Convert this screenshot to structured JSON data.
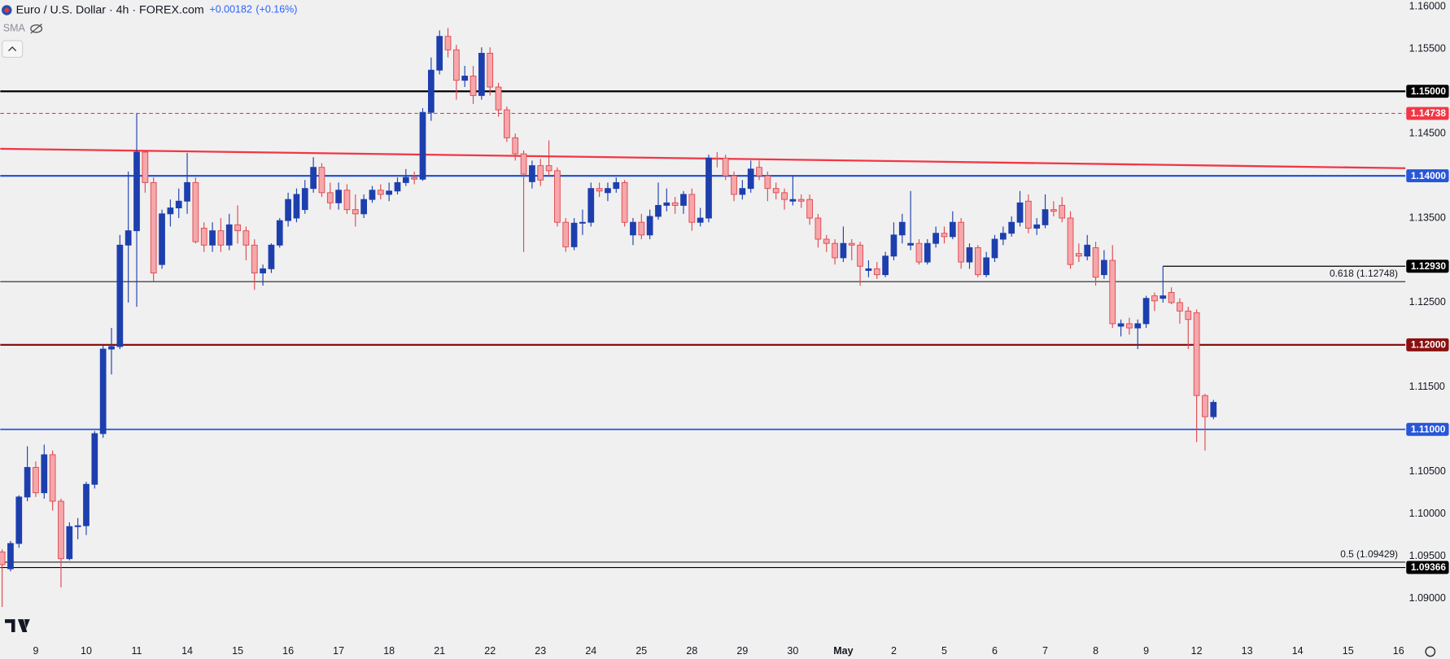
{
  "header": {
    "symbol": "Euro / U.S. Dollar · 4h · FOREX.com",
    "change": "+0.00182",
    "change_pct": "(+0.16%)",
    "indicator": "SMA"
  },
  "chart_data": {
    "type": "candlestick",
    "categories": [
      null,
      null,
      null,
      null,
      "9",
      null,
      null,
      null,
      null,
      null,
      "10",
      null,
      null,
      null,
      null,
      null,
      "11",
      null,
      null,
      null,
      null,
      null,
      "14",
      null,
      null,
      null,
      null,
      null,
      "15",
      null,
      null,
      null,
      null,
      null,
      "16",
      null,
      null,
      null,
      null,
      null,
      "17",
      null,
      null,
      null,
      null,
      null,
      "18",
      null,
      null,
      null,
      null,
      null,
      "21",
      null,
      null,
      null,
      null,
      null,
      "22",
      null,
      null,
      null,
      null,
      null,
      "23",
      null,
      null,
      null,
      null,
      null,
      "24",
      null,
      null,
      null,
      null,
      null,
      "25",
      null,
      null,
      null,
      null,
      null,
      "28",
      null,
      null,
      null,
      null,
      null,
      "29",
      null,
      null,
      null,
      null,
      null,
      "30",
      null,
      null,
      null,
      null,
      null,
      "May",
      null,
      null,
      null,
      null,
      null,
      "2",
      null,
      null,
      null,
      null,
      null,
      "5",
      null,
      null,
      null,
      null,
      null,
      "6",
      null,
      null,
      null,
      null,
      null,
      "7",
      null,
      null,
      null,
      null,
      null,
      "8",
      null,
      null,
      null,
      null,
      null,
      "9",
      null,
      null,
      null,
      null,
      null,
      "12",
      null,
      null,
      null,
      null,
      null,
      "13",
      null,
      null,
      null,
      null,
      null,
      "14",
      null,
      null,
      null,
      null,
      null,
      "15",
      null,
      null,
      null,
      null,
      null,
      "16"
    ],
    "ohlc": [
      [
        1.0955,
        1.0958,
        1.089,
        1.094
      ],
      [
        1.0935,
        1.0968,
        1.0932,
        1.0965
      ],
      [
        1.0965,
        1.1022,
        1.096,
        1.102
      ],
      [
        1.102,
        1.108,
        1.1015,
        1.1055
      ],
      [
        1.1055,
        1.1062,
        1.102,
        1.1025
      ],
      [
        1.1025,
        1.1082,
        1.1018,
        1.107
      ],
      [
        1.107,
        1.1075,
        1.1004,
        1.1015
      ],
      [
        1.1015,
        1.1018,
        1.0913,
        1.0947
      ],
      [
        1.0947,
        1.099,
        1.0945,
        1.0985
      ],
      [
        1.0985,
        1.0995,
        1.097,
        1.0986
      ],
      [
        1.0986,
        1.1038,
        1.0975,
        1.1035
      ],
      [
        1.1035,
        1.1098,
        1.103,
        1.1095
      ],
      [
        1.1095,
        1.12,
        1.109,
        1.1195
      ],
      [
        1.1195,
        1.122,
        1.1165,
        1.1198
      ],
      [
        1.1198,
        1.133,
        1.1195,
        1.1318
      ],
      [
        1.1318,
        1.1405,
        1.125,
        1.1335
      ],
      [
        1.1335,
        1.1474,
        1.1245,
        1.1428
      ],
      [
        1.1428,
        1.143,
        1.138,
        1.1392
      ],
      [
        1.1392,
        1.1398,
        1.1275,
        1.1285
      ],
      [
        1.1295,
        1.136,
        1.129,
        1.1355
      ],
      [
        1.1355,
        1.1372,
        1.134,
        1.1362
      ],
      [
        1.1362,
        1.1385,
        1.135,
        1.137
      ],
      [
        1.137,
        1.1427,
        1.1355,
        1.1392
      ],
      [
        1.1392,
        1.1398,
        1.132,
        1.1322
      ],
      [
        1.1338,
        1.1345,
        1.131,
        1.1318
      ],
      [
        1.1318,
        1.1345,
        1.131,
        1.1335
      ],
      [
        1.1335,
        1.135,
        1.131,
        1.1318
      ],
      [
        1.1318,
        1.1355,
        1.1312,
        1.1342
      ],
      [
        1.1342,
        1.1365,
        1.132,
        1.1335
      ],
      [
        1.1335,
        1.134,
        1.13,
        1.1318
      ],
      [
        1.1318,
        1.1325,
        1.1265,
        1.1285
      ],
      [
        1.1285,
        1.1295,
        1.127,
        1.129
      ],
      [
        1.129,
        1.132,
        1.1285,
        1.1318
      ],
      [
        1.1318,
        1.135,
        1.1315,
        1.1347
      ],
      [
        1.1347,
        1.138,
        1.134,
        1.1372
      ],
      [
        1.135,
        1.1385,
        1.1345,
        1.1378
      ],
      [
        1.136,
        1.1395,
        1.1355,
        1.1385
      ],
      [
        1.1385,
        1.1422,
        1.138,
        1.141
      ],
      [
        1.141,
        1.1415,
        1.1375,
        1.138
      ],
      [
        1.138,
        1.1392,
        1.136,
        1.1368
      ],
      [
        1.1368,
        1.1392,
        1.136,
        1.1383
      ],
      [
        1.1383,
        1.139,
        1.1355,
        1.136
      ],
      [
        1.136,
        1.1378,
        1.134,
        1.1355
      ],
      [
        1.1355,
        1.1378,
        1.135,
        1.1372
      ],
      [
        1.1372,
        1.1388,
        1.1368,
        1.1383
      ],
      [
        1.1383,
        1.139,
        1.1372,
        1.1378
      ],
      [
        1.1378,
        1.1392,
        1.137,
        1.1382
      ],
      [
        1.1382,
        1.1398,
        1.1378,
        1.1392
      ],
      [
        1.1392,
        1.1408,
        1.1388,
        1.1398
      ],
      [
        1.1398,
        1.1405,
        1.139,
        1.1396
      ],
      [
        1.1396,
        1.148,
        1.1394,
        1.1475
      ],
      [
        1.1475,
        1.154,
        1.1465,
        1.1525
      ],
      [
        1.1525,
        1.1572,
        1.152,
        1.1565
      ],
      [
        1.1565,
        1.1575,
        1.154,
        1.1549
      ],
      [
        1.1549,
        1.1555,
        1.149,
        1.1513
      ],
      [
        1.1513,
        1.153,
        1.1505,
        1.1518
      ],
      [
        1.1518,
        1.153,
        1.1485,
        1.1495
      ],
      [
        1.1495,
        1.1552,
        1.149,
        1.1545
      ],
      [
        1.1545,
        1.1552,
        1.1495,
        1.1505
      ],
      [
        1.1505,
        1.151,
        1.147,
        1.1478
      ],
      [
        1.1478,
        1.1482,
        1.144,
        1.1445
      ],
      [
        1.1445,
        1.145,
        1.1418,
        1.1426
      ],
      [
        1.1426,
        1.143,
        1.131,
        1.1402
      ],
      [
        1.1393,
        1.1418,
        1.1385,
        1.1412
      ],
      [
        1.1412,
        1.142,
        1.1388,
        1.1395
      ],
      [
        1.1412,
        1.1442,
        1.14,
        1.1406
      ],
      [
        1.1406,
        1.141,
        1.134,
        1.1345
      ],
      [
        1.1345,
        1.135,
        1.131,
        1.1316
      ],
      [
        1.1316,
        1.135,
        1.1312,
        1.1344
      ],
      [
        1.1344,
        1.136,
        1.133,
        1.1345
      ],
      [
        1.1345,
        1.1392,
        1.134,
        1.1385
      ],
      [
        1.1385,
        1.1392,
        1.1375,
        1.1382
      ],
      [
        1.138,
        1.1392,
        1.137,
        1.1385
      ],
      [
        1.1385,
        1.1398,
        1.138,
        1.1392
      ],
      [
        1.1392,
        1.1395,
        1.134,
        1.1345
      ],
      [
        1.133,
        1.135,
        1.1318,
        1.1345
      ],
      [
        1.1345,
        1.1355,
        1.1325,
        1.133
      ],
      [
        1.133,
        1.136,
        1.1325,
        1.1352
      ],
      [
        1.1352,
        1.1392,
        1.1348,
        1.1365
      ],
      [
        1.1365,
        1.1385,
        1.1358,
        1.1368
      ],
      [
        1.1368,
        1.1375,
        1.1355,
        1.1365
      ],
      [
        1.1365,
        1.1382,
        1.1355,
        1.1378
      ],
      [
        1.1378,
        1.1385,
        1.1335,
        1.1345
      ],
      [
        1.1345,
        1.1362,
        1.134,
        1.135
      ],
      [
        1.135,
        1.1425,
        1.1345,
        1.1421
      ],
      [
        1.1421,
        1.1428,
        1.141,
        1.142
      ],
      [
        1.1421,
        1.1425,
        1.1395,
        1.14
      ],
      [
        1.14,
        1.1405,
        1.137,
        1.1378
      ],
      [
        1.1378,
        1.1395,
        1.1372,
        1.1385
      ],
      [
        1.1385,
        1.1418,
        1.138,
        1.1408
      ],
      [
        1.141,
        1.1418,
        1.1395,
        1.14
      ],
      [
        1.14,
        1.1405,
        1.137,
        1.1385
      ],
      [
        1.1385,
        1.1392,
        1.1372,
        1.138
      ],
      [
        1.138,
        1.1385,
        1.136,
        1.1372
      ],
      [
        1.137,
        1.14,
        1.1365,
        1.1372
      ],
      [
        1.1372,
        1.1378,
        1.1362,
        1.137
      ],
      [
        1.1372,
        1.1378,
        1.1342,
        1.135
      ],
      [
        1.135,
        1.1355,
        1.1315,
        1.1325
      ],
      [
        1.1325,
        1.133,
        1.131,
        1.132
      ],
      [
        1.132,
        1.1325,
        1.1295,
        1.1303
      ],
      [
        1.1303,
        1.134,
        1.1298,
        1.132
      ],
      [
        1.132,
        1.1325,
        1.13,
        1.1318
      ],
      [
        1.1318,
        1.1322,
        1.127,
        1.1293
      ],
      [
        1.1288,
        1.13,
        1.128,
        1.129
      ],
      [
        1.129,
        1.1298,
        1.1278,
        1.1283
      ],
      [
        1.1283,
        1.131,
        1.128,
        1.1305
      ],
      [
        1.1305,
        1.1345,
        1.13,
        1.133
      ],
      [
        1.133,
        1.1355,
        1.132,
        1.1345
      ],
      [
        1.1318,
        1.1382,
        1.1312,
        1.132
      ],
      [
        1.132,
        1.1325,
        1.1295,
        1.1298
      ],
      [
        1.1298,
        1.1325,
        1.1295,
        1.132
      ],
      [
        1.132,
        1.134,
        1.1315,
        1.1332
      ],
      [
        1.1332,
        1.134,
        1.132,
        1.1328
      ],
      [
        1.1328,
        1.1358,
        1.1325,
        1.1345
      ],
      [
        1.1345,
        1.135,
        1.129,
        1.1298
      ],
      [
        1.1298,
        1.132,
        1.129,
        1.1315
      ],
      [
        1.1315,
        1.1318,
        1.128,
        1.1283
      ],
      [
        1.1283,
        1.131,
        1.128,
        1.1303
      ],
      [
        1.1303,
        1.133,
        1.1298,
        1.1325
      ],
      [
        1.1325,
        1.134,
        1.1318,
        1.1332
      ],
      [
        1.1332,
        1.1352,
        1.1328,
        1.1345
      ],
      [
        1.1345,
        1.1382,
        1.134,
        1.1368
      ],
      [
        1.137,
        1.1378,
        1.1332,
        1.1338
      ],
      [
        1.1338,
        1.135,
        1.133,
        1.1342
      ],
      [
        1.1342,
        1.1378,
        1.1338,
        1.136
      ],
      [
        1.136,
        1.137,
        1.1352,
        1.1358
      ],
      [
        1.1365,
        1.1375,
        1.1345,
        1.135
      ],
      [
        1.135,
        1.1358,
        1.129,
        1.1295
      ],
      [
        1.1308,
        1.132,
        1.1298,
        1.1305
      ],
      [
        1.1305,
        1.133,
        1.13,
        1.1318
      ],
      [
        1.1315,
        1.1322,
        1.127,
        1.128
      ],
      [
        1.1283,
        1.1312,
        1.1278,
        1.13
      ],
      [
        1.13,
        1.1318,
        1.122,
        1.1225
      ],
      [
        1.1222,
        1.123,
        1.121,
        1.1225
      ],
      [
        1.1225,
        1.1232,
        1.1212,
        1.122
      ],
      [
        1.122,
        1.123,
        1.1195,
        1.1225
      ],
      [
        1.1225,
        1.1258,
        1.122,
        1.1255
      ],
      [
        1.1258,
        1.1262,
        1.124,
        1.1252
      ],
      [
        1.1255,
        1.1293,
        1.125,
        1.1258
      ],
      [
        1.1262,
        1.1268,
        1.1248,
        1.125
      ],
      [
        1.125,
        1.1255,
        1.1225,
        1.124
      ],
      [
        1.124,
        1.1245,
        1.1195,
        1.123
      ],
      [
        1.1238,
        1.1242,
        1.1085,
        1.114
      ],
      [
        1.114,
        1.1142,
        1.1075,
        1.1115
      ],
      [
        1.1115,
        1.1135,
        1.1112,
        1.1132
      ],
      null,
      null,
      null,
      null,
      null,
      null,
      null,
      null,
      null,
      null,
      null,
      null,
      null,
      null,
      null,
      null,
      null,
      null,
      null,
      null,
      null,
      null
    ],
    "up_color": "#1d3fae",
    "down_color": "#f6a7ab",
    "down_border": "#e0474e",
    "ylim": [
      1.0883,
      1.1608
    ],
    "yticks": [
      {
        "value": 1.09,
        "label": "1.09000"
      },
      {
        "value": 1.095,
        "label": "1.09500"
      },
      {
        "value": 1.1,
        "label": "1.10000"
      },
      {
        "value": 1.105,
        "label": "1.10500"
      },
      {
        "value": 1.115,
        "label": "1.11500"
      },
      {
        "value": 1.125,
        "label": "1.12500"
      },
      {
        "value": 1.135,
        "label": "1.13500"
      },
      {
        "value": 1.145,
        "label": "1.14500"
      },
      {
        "value": 1.155,
        "label": "1.15500"
      },
      {
        "value": 1.16,
        "label": "1.16000"
      }
    ],
    "grid": false,
    "levels": [
      {
        "value": 1.15,
        "label": "1.15000",
        "color": "#000000",
        "width": 2,
        "dashed": false
      },
      {
        "value": 1.14738,
        "label": "1.14738",
        "color": "#f23645",
        "width": 1,
        "dashed": true
      },
      {
        "value": 1.14,
        "label": "1.14000",
        "color": "#2756d8",
        "width": 2,
        "dashed": false
      },
      {
        "value": 1.1293,
        "label": "1.12930",
        "color": "#000000",
        "width": 1,
        "dashed": false,
        "partial": true
      },
      {
        "value": 1.12,
        "label": "1.12000",
        "color": "#8a1010",
        "width": 2,
        "dashed": false
      },
      {
        "value": 1.11,
        "label": "1.11000",
        "color": "#2756d8",
        "width": 1.5,
        "dashed": false
      },
      {
        "value": 1.09366,
        "label": "1.09366",
        "color": "#000000",
        "width": 1,
        "dashed": false
      }
    ],
    "fib_levels": [
      {
        "value": 1.12748,
        "label": "0.618 (1.12748)"
      },
      {
        "value": 1.09429,
        "label": "0.5 (1.09429)"
      }
    ],
    "trendline": {
      "start": 1.1432,
      "end": 1.1409,
      "color": "#f23645"
    }
  }
}
